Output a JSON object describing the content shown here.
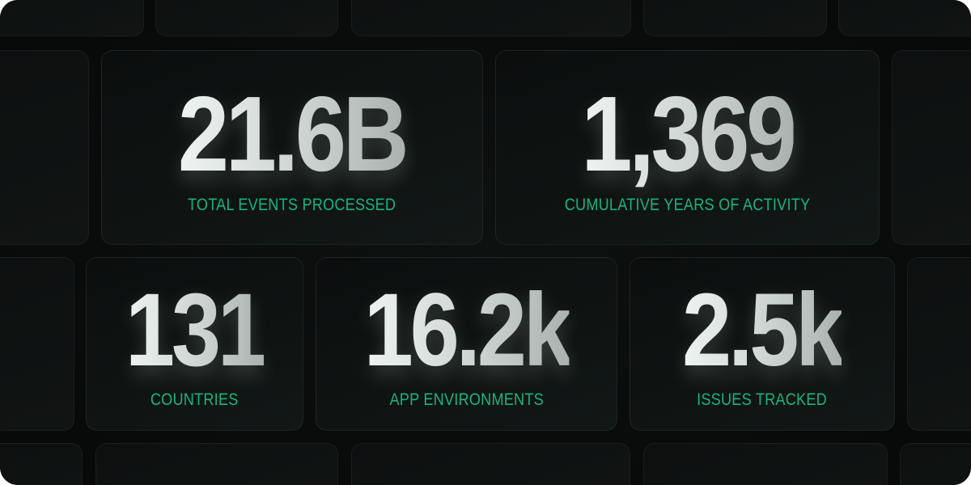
{
  "stats": [
    {
      "value": "21.6B",
      "label": "TOTAL EVENTS PROCESSED"
    },
    {
      "value": "1,369",
      "label": "CUMULATIVE YEARS OF ACTIVITY"
    },
    {
      "value": "131",
      "label": "COUNTRIES"
    },
    {
      "value": "16.2k",
      "label": "APP ENVIRONMENTS"
    },
    {
      "value": "2.5k",
      "label": "ISSUES TRACKED"
    }
  ],
  "colors": {
    "background": "#0a0c0c",
    "label": "#17b47d",
    "number": "#dfe6e3"
  }
}
